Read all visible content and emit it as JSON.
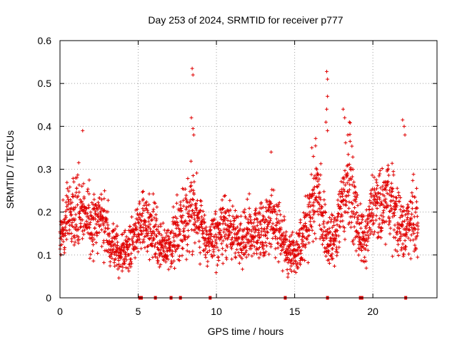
{
  "chart_data": {
    "type": "scatter",
    "title": "Day 253 of 2024, SRMTID for receiver p777",
    "xlabel": "GPS time / hours",
    "ylabel": "SRMTID / TECUs",
    "xlim": [
      0,
      24.1
    ],
    "ylim": [
      0,
      0.6
    ],
    "x_ticks": [
      0,
      5,
      10,
      15,
      20
    ],
    "x_tick_labels": [
      "0",
      "5",
      "10",
      "15",
      "20"
    ],
    "y_ticks": [
      0,
      0.1,
      0.2,
      0.3,
      0.4,
      0.5,
      0.6
    ],
    "y_tick_labels": [
      "0",
      "0.1",
      "0.2",
      "0.3",
      "0.4",
      "0.5",
      "0.6"
    ],
    "grid": true,
    "marker": "+",
    "color": "#e00000",
    "envelope": {
      "description": "approximate typical SRMTID level (TECU) vs hour; scattered points fall around this band",
      "x": [
        0,
        0.5,
        1,
        1.5,
        2,
        2.5,
        3,
        3.5,
        4,
        4.5,
        5,
        5.5,
        6,
        6.5,
        7,
        7.5,
        8,
        8.5,
        9,
        9.5,
        10,
        10.5,
        11,
        11.5,
        12,
        12.5,
        13,
        13.5,
        14,
        14.5,
        15,
        15.5,
        16,
        16.5,
        17,
        17.5,
        18,
        18.5,
        19,
        19.5,
        20,
        20.5,
        21,
        21.5,
        22,
        22.5,
        22.9
      ],
      "center": [
        0.15,
        0.18,
        0.22,
        0.2,
        0.17,
        0.19,
        0.15,
        0.11,
        0.1,
        0.13,
        0.16,
        0.17,
        0.16,
        0.11,
        0.12,
        0.15,
        0.19,
        0.21,
        0.17,
        0.13,
        0.14,
        0.17,
        0.15,
        0.13,
        0.15,
        0.16,
        0.15,
        0.19,
        0.16,
        0.11,
        0.1,
        0.14,
        0.2,
        0.26,
        0.14,
        0.13,
        0.22,
        0.28,
        0.17,
        0.12,
        0.22,
        0.2,
        0.24,
        0.19,
        0.15,
        0.2,
        0.15
      ],
      "spread": [
        0.04,
        0.05,
        0.07,
        0.06,
        0.05,
        0.05,
        0.05,
        0.04,
        0.03,
        0.04,
        0.05,
        0.05,
        0.05,
        0.04,
        0.04,
        0.05,
        0.06,
        0.07,
        0.05,
        0.04,
        0.05,
        0.05,
        0.05,
        0.04,
        0.05,
        0.05,
        0.05,
        0.06,
        0.05,
        0.04,
        0.03,
        0.05,
        0.06,
        0.08,
        0.05,
        0.05,
        0.07,
        0.08,
        0.05,
        0.04,
        0.06,
        0.06,
        0.07,
        0.06,
        0.05,
        0.06,
        0.05
      ]
    },
    "spikes": [
      {
        "x": 1.45,
        "y": 0.39
      },
      {
        "x": 8.45,
        "y": 0.535
      },
      {
        "x": 8.5,
        "y": 0.52
      },
      {
        "x": 8.4,
        "y": 0.42
      },
      {
        "x": 8.5,
        "y": 0.395
      },
      {
        "x": 8.55,
        "y": 0.38
      },
      {
        "x": 13.5,
        "y": 0.34
      },
      {
        "x": 17.05,
        "y": 0.528
      },
      {
        "x": 17.1,
        "y": 0.51
      },
      {
        "x": 17.1,
        "y": 0.47
      },
      {
        "x": 17.05,
        "y": 0.44
      },
      {
        "x": 17.0,
        "y": 0.41
      },
      {
        "x": 17.1,
        "y": 0.39
      },
      {
        "x": 18.1,
        "y": 0.44
      },
      {
        "x": 18.2,
        "y": 0.42
      },
      {
        "x": 18.5,
        "y": 0.41
      },
      {
        "x": 18.4,
        "y": 0.38
      },
      {
        "x": 21.9,
        "y": 0.415
      },
      {
        "x": 22.0,
        "y": 0.4
      },
      {
        "x": 22.05,
        "y": 0.38
      },
      {
        "x": 16.1,
        "y": 0.35
      },
      {
        "x": 16.2,
        "y": 0.33
      }
    ],
    "zero_markers_x": [
      5.1,
      5.2,
      6.1,
      7.1,
      7.7,
      9.6,
      14.4,
      17.1,
      19.2,
      19.3,
      22.1
    ]
  }
}
